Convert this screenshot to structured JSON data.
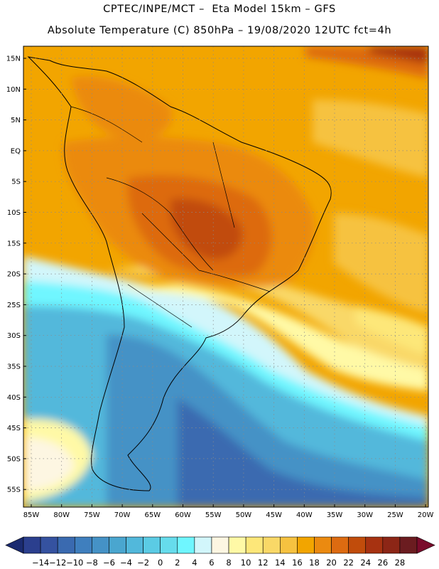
{
  "title": {
    "line1": "CPTEC/INPE/MCT –  Eta Model 15km – GFS",
    "line2": "Absolute Temperature (C) 850hPa – 19/08/2020 12UTC fct=4h"
  },
  "map": {
    "lat_labels": [
      "15N",
      "10N",
      "5N",
      "EQ",
      "5S",
      "10S",
      "15S",
      "20S",
      "25S",
      "30S",
      "35S",
      "40S",
      "45S",
      "50S",
      "55S"
    ],
    "lon_labels": [
      "85W",
      "80W",
      "75W",
      "70W",
      "65W",
      "60W",
      "55W",
      "50W",
      "45W",
      "40W",
      "35W",
      "30W",
      "25W",
      "20W"
    ],
    "gridlines": true
  },
  "colorbar": {
    "labels": [
      "-14",
      "-12",
      "-10",
      "-8",
      "-6",
      "-4",
      "-2",
      "0",
      "2",
      "4",
      "6",
      "8",
      "10",
      "12",
      "14",
      "16",
      "18",
      "20",
      "22",
      "24",
      "26",
      "28"
    ],
    "colors": [
      "#2b3f8e",
      "#3552a0",
      "#3a6ab0",
      "#3f7fbe",
      "#4592c6",
      "#4aa6cf",
      "#52b8db",
      "#5bcbe4",
      "#66dcec",
      "#6ff6ff",
      "#d2f6fb",
      "#fdf6e2",
      "#fff9a6",
      "#fde779",
      "#f9d867",
      "#f6c240",
      "#f2a500",
      "#eb8a10",
      "#dd6b11",
      "#c14c0b",
      "#a73211",
      "#8c2616",
      "#6b1c20"
    ],
    "under_color": "#1a2a70",
    "over_color": "#7a0b2b"
  }
}
